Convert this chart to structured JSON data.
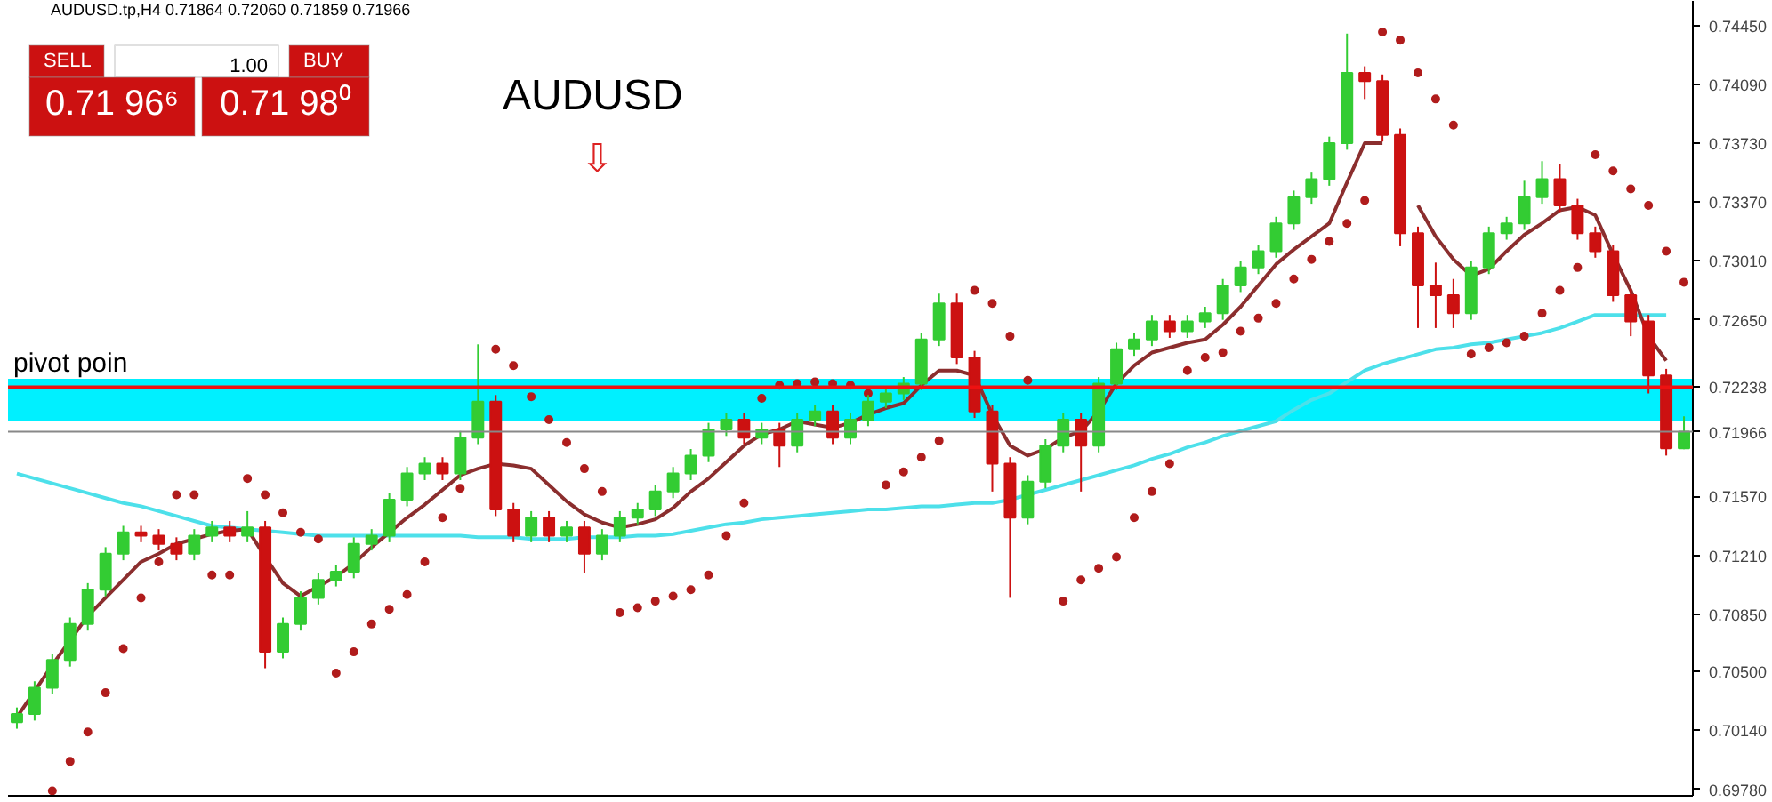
{
  "chart_data": {
    "type": "candlestick",
    "title": "AUDUSD",
    "subtitle": "AUDUSD.tp,H4  0.71864 0.72060 0.71859 0.71966",
    "annotations": [
      "SELL",
      "1.00",
      "BUY",
      "0.71 96⁶",
      "0.71 98⁰",
      "⇩"
    ],
    "categories": [
      null,
      null,
      null,
      null,
      null,
      null,
      null,
      null,
      null,
      null,
      null,
      null,
      null,
      null,
      null,
      null,
      null,
      null,
      null,
      null,
      null,
      null,
      null,
      null,
      null,
      null,
      null,
      null,
      null,
      null,
      null,
      null,
      null,
      null,
      null,
      null,
      null,
      null,
      null,
      null,
      null,
      null,
      null,
      null,
      null,
      null,
      null,
      null,
      null,
      null,
      null,
      null,
      null,
      null,
      null,
      null,
      null,
      null,
      null,
      null,
      null,
      null,
      null,
      null,
      null,
      null,
      null,
      null,
      null,
      null,
      null,
      null,
      null,
      null,
      null,
      null,
      null,
      null,
      null,
      null,
      null,
      null,
      null,
      null,
      null,
      null,
      null,
      null,
      null,
      null,
      null,
      null,
      null,
      null,
      null
    ],
    "ohlc": [
      [
        0.7019,
        0.7028,
        0.7015,
        0.7024
      ],
      [
        0.7024,
        0.7044,
        0.702,
        0.704
      ],
      [
        0.704,
        0.7061,
        0.7036,
        0.7057
      ],
      [
        0.7057,
        0.7083,
        0.7053,
        0.7079
      ],
      [
        0.7079,
        0.7104,
        0.7075,
        0.71
      ],
      [
        0.71,
        0.7126,
        0.7096,
        0.7122
      ],
      [
        0.7122,
        0.7139,
        0.7118,
        0.7135
      ],
      [
        0.7135,
        0.7139,
        0.7129,
        0.7133
      ],
      [
        0.7133,
        0.7137,
        0.7124,
        0.7128
      ],
      [
        0.7128,
        0.7132,
        0.7118,
        0.7122
      ],
      [
        0.7122,
        0.7137,
        0.7118,
        0.7133
      ],
      [
        0.7133,
        0.7142,
        0.7129,
        0.7138
      ],
      [
        0.7138,
        0.7142,
        0.7129,
        0.7133
      ],
      [
        0.7133,
        0.7148,
        0.7129,
        0.7138
      ],
      [
        0.7138,
        0.7142,
        0.7052,
        0.7062
      ],
      [
        0.7062,
        0.7083,
        0.7058,
        0.7079
      ],
      [
        0.7079,
        0.7099,
        0.7075,
        0.7095
      ],
      [
        0.7095,
        0.711,
        0.7091,
        0.7106
      ],
      [
        0.7106,
        0.7115,
        0.7102,
        0.7111
      ],
      [
        0.7111,
        0.7132,
        0.7107,
        0.7128
      ],
      [
        0.7128,
        0.7137,
        0.7124,
        0.7133
      ],
      [
        0.7133,
        0.7159,
        0.7129,
        0.7155
      ],
      [
        0.7155,
        0.7175,
        0.7151,
        0.7171
      ],
      [
        0.7171,
        0.7181,
        0.7167,
        0.7177
      ],
      [
        0.7177,
        0.7181,
        0.7167,
        0.7171
      ],
      [
        0.7171,
        0.7197,
        0.7167,
        0.7193
      ],
      [
        0.7193,
        0.725,
        0.7189,
        0.7215
      ],
      [
        0.7215,
        0.7219,
        0.7145,
        0.7149
      ],
      [
        0.7149,
        0.7153,
        0.7129,
        0.7133
      ],
      [
        0.7133,
        0.7148,
        0.7129,
        0.7144
      ],
      [
        0.7144,
        0.7148,
        0.7129,
        0.7133
      ],
      [
        0.7133,
        0.7142,
        0.7129,
        0.7138
      ],
      [
        0.7138,
        0.7142,
        0.711,
        0.7122
      ],
      [
        0.7122,
        0.7137,
        0.7118,
        0.7133
      ],
      [
        0.7133,
        0.7148,
        0.7129,
        0.7144
      ],
      [
        0.7144,
        0.7153,
        0.714,
        0.7149
      ],
      [
        0.7149,
        0.7164,
        0.7145,
        0.716
      ],
      [
        0.716,
        0.7175,
        0.7156,
        0.7171
      ],
      [
        0.7171,
        0.7186,
        0.7167,
        0.7182
      ],
      [
        0.7182,
        0.7202,
        0.7178,
        0.7198
      ],
      [
        0.7198,
        0.7208,
        0.7194,
        0.7204
      ],
      [
        0.7204,
        0.7208,
        0.7189,
        0.7193
      ],
      [
        0.7193,
        0.7202,
        0.7189,
        0.7198
      ],
      [
        0.7198,
        0.7202,
        0.7175,
        0.7188
      ],
      [
        0.7188,
        0.7208,
        0.7184,
        0.7204
      ],
      [
        0.7204,
        0.7213,
        0.72,
        0.7209
      ],
      [
        0.7209,
        0.7213,
        0.7189,
        0.7193
      ],
      [
        0.7193,
        0.7208,
        0.7189,
        0.7204
      ],
      [
        0.7204,
        0.7219,
        0.72,
        0.7215
      ],
      [
        0.7215,
        0.7224,
        0.7211,
        0.722
      ],
      [
        0.722,
        0.723,
        0.7216,
        0.7226
      ],
      [
        0.7226,
        0.7257,
        0.7222,
        0.7253
      ],
      [
        0.7253,
        0.7281,
        0.7249,
        0.7275
      ],
      [
        0.7275,
        0.7281,
        0.7238,
        0.7242
      ],
      [
        0.7242,
        0.7246,
        0.7205,
        0.7209
      ],
      [
        0.7209,
        0.7213,
        0.716,
        0.7177
      ],
      [
        0.7177,
        0.7181,
        0.7095,
        0.7144
      ],
      [
        0.7144,
        0.717,
        0.714,
        0.7166
      ],
      [
        0.7166,
        0.7192,
        0.7162,
        0.7188
      ],
      [
        0.7188,
        0.7208,
        0.7184,
        0.7204
      ],
      [
        0.7204,
        0.7208,
        0.716,
        0.7188
      ],
      [
        0.7188,
        0.723,
        0.7184,
        0.7226
      ],
      [
        0.7226,
        0.7251,
        0.7222,
        0.7247
      ],
      [
        0.7247,
        0.7257,
        0.7243,
        0.7253
      ],
      [
        0.7253,
        0.7268,
        0.7249,
        0.7264
      ],
      [
        0.7264,
        0.7268,
        0.7254,
        0.7258
      ],
      [
        0.7258,
        0.7268,
        0.7254,
        0.7264
      ],
      [
        0.7264,
        0.7273,
        0.726,
        0.7269
      ],
      [
        0.7269,
        0.729,
        0.7265,
        0.7286
      ],
      [
        0.7286,
        0.7301,
        0.7282,
        0.7297
      ],
      [
        0.7297,
        0.7311,
        0.7293,
        0.7307
      ],
      [
        0.7307,
        0.7328,
        0.7303,
        0.7324
      ],
      [
        0.7324,
        0.7344,
        0.732,
        0.734
      ],
      [
        0.734,
        0.7355,
        0.7336,
        0.7351
      ],
      [
        0.7351,
        0.7377,
        0.7347,
        0.7373
      ],
      [
        0.7373,
        0.744,
        0.7369,
        0.7416
      ],
      [
        0.7416,
        0.742,
        0.74,
        0.7411
      ],
      [
        0.7411,
        0.7415,
        0.7374,
        0.7378
      ],
      [
        0.7378,
        0.7382,
        0.731,
        0.7318
      ],
      [
        0.7318,
        0.7322,
        0.726,
        0.7286
      ],
      [
        0.7286,
        0.73,
        0.726,
        0.728
      ],
      [
        0.728,
        0.729,
        0.726,
        0.7269
      ],
      [
        0.7269,
        0.7301,
        0.7265,
        0.7297
      ],
      [
        0.7297,
        0.7322,
        0.7293,
        0.7318
      ],
      [
        0.7318,
        0.7328,
        0.7314,
        0.7324
      ],
      [
        0.7324,
        0.735,
        0.732,
        0.734
      ],
      [
        0.734,
        0.7362,
        0.7336,
        0.7351
      ],
      [
        0.7351,
        0.736,
        0.7331,
        0.7335
      ],
      [
        0.7335,
        0.7339,
        0.7314,
        0.7318
      ],
      [
        0.7318,
        0.7322,
        0.7303,
        0.7307
      ],
      [
        0.7307,
        0.7311,
        0.7276,
        0.728
      ],
      [
        0.728,
        0.7284,
        0.7255,
        0.7264
      ],
      [
        0.7264,
        0.7268,
        0.722,
        0.7231
      ],
      [
        0.7231,
        0.7235,
        0.7182,
        0.71864
      ],
      [
        0.71864,
        0.7206,
        0.71859,
        0.71966
      ]
    ],
    "colors": [
      "#33cc33",
      "#33cc33",
      "#33cc33",
      "#33cc33",
      "#33cc33",
      "#33cc33",
      "#33cc33",
      "#cc1111",
      "#cc1111",
      "#cc1111",
      "#33cc33",
      "#33cc33",
      "#cc1111",
      "#33cc33",
      "#cc1111",
      "#33cc33",
      "#33cc33",
      "#33cc33",
      "#33cc33",
      "#33cc33",
      "#33cc33",
      "#33cc33",
      "#33cc33",
      "#33cc33",
      "#cc1111",
      "#33cc33",
      "#33cc33",
      "#cc1111",
      "#cc1111",
      "#33cc33",
      "#cc1111",
      "#33cc33",
      "#cc1111",
      "#33cc33",
      "#33cc33",
      "#33cc33",
      "#33cc33",
      "#33cc33",
      "#33cc33",
      "#33cc33",
      "#33cc33",
      "#cc1111",
      "#33cc33",
      "#cc1111",
      "#33cc33",
      "#33cc33",
      "#cc1111",
      "#33cc33",
      "#33cc33",
      "#33cc33",
      "#33cc33",
      "#33cc33",
      "#33cc33",
      "#cc1111",
      "#cc1111",
      "#cc1111",
      "#cc1111",
      "#33cc33",
      "#33cc33",
      "#33cc33",
      "#cc1111",
      "#33cc33",
      "#33cc33",
      "#33cc33",
      "#33cc33",
      "#cc1111",
      "#33cc33",
      "#33cc33",
      "#33cc33",
      "#33cc33",
      "#33cc33",
      "#33cc33",
      "#33cc33",
      "#33cc33",
      "#33cc33",
      "#33cc33",
      "#cc1111",
      "#cc1111",
      "#cc1111",
      "#cc1111",
      "#cc1111",
      "#cc1111",
      "#33cc33",
      "#33cc33",
      "#33cc33",
      "#33cc33",
      "#33cc33",
      "#cc1111",
      "#cc1111",
      "#cc1111",
      "#cc1111",
      "#cc1111",
      "#cc1111",
      "#cc1111",
      "#33cc33"
    ],
    "series": [
      {
        "type": "line",
        "color": "#4de0ea",
        "values": [
          0.7171,
          0.7168,
          0.7165,
          0.7162,
          0.7159,
          0.7156,
          0.7153,
          0.7151,
          0.7148,
          0.7145,
          0.7142,
          0.7139,
          0.7138,
          0.7137,
          0.7136,
          0.7135,
          0.7134,
          0.7133,
          0.7133,
          0.7133,
          0.7133,
          0.7133,
          0.7133,
          0.7133,
          0.7133,
          0.7133,
          0.7132,
          0.7132,
          0.7132,
          0.7131,
          0.7131,
          0.7131,
          0.7132,
          0.7132,
          0.7132,
          0.7133,
          0.7133,
          0.7134,
          0.7136,
          0.7138,
          0.714,
          0.7141,
          0.7143,
          0.7144,
          0.7145,
          0.7146,
          0.7147,
          0.7148,
          0.7149,
          0.7149,
          0.715,
          0.7151,
          0.7151,
          0.7152,
          0.7153,
          0.7153,
          0.7155,
          0.7158,
          0.7161,
          0.7164,
          0.7167,
          0.717,
          0.7173,
          0.7176,
          0.718,
          0.7183,
          0.7187,
          0.719,
          0.7194,
          0.7197,
          0.72,
          0.7203,
          0.721,
          0.7216,
          0.722,
          0.7227,
          0.7234,
          0.7238,
          0.7241,
          0.7244,
          0.7247,
          0.7248,
          0.725,
          0.7251,
          0.7253,
          0.7255,
          0.7257,
          0.726,
          0.7264,
          0.7268,
          0.7268,
          0.7268,
          0.7268,
          0.7268,
          null
        ]
      },
      {
        "type": "line",
        "color": "#8b2e2e",
        "values": [
          0.7022,
          0.7038,
          0.7054,
          0.7069,
          0.7084,
          0.7095,
          0.7106,
          0.7117,
          0.7122,
          0.7128,
          0.7131,
          0.7134,
          0.7136,
          0.7137,
          0.712,
          0.7104,
          0.7096,
          0.7102,
          0.7108,
          0.7116,
          0.7126,
          0.7135,
          0.7144,
          0.7152,
          0.7161,
          0.717,
          0.7174,
          0.7177,
          0.7176,
          0.7174,
          0.7164,
          0.7154,
          0.7146,
          0.7141,
          0.7138,
          0.714,
          0.7143,
          0.715,
          0.716,
          0.7168,
          0.7178,
          0.7188,
          0.7195,
          0.7198,
          0.7203,
          0.7201,
          0.7199,
          0.7202,
          0.7207,
          0.7211,
          0.7214,
          0.7225,
          0.7234,
          0.7234,
          0.7231,
          0.7207,
          0.7188,
          0.7182,
          0.7186,
          0.7193,
          0.7197,
          0.7209,
          0.7226,
          0.7237,
          0.7245,
          0.7248,
          0.7251,
          0.7253,
          0.7262,
          0.7273,
          0.7286,
          0.7299,
          0.7308,
          0.7316,
          0.7324,
          0.7349,
          0.7373,
          0.7373,
          null,
          0.7335,
          0.7316,
          0.7302,
          0.7292,
          0.7296,
          0.7307,
          0.7317,
          0.7324,
          0.7332,
          0.7334,
          0.7329,
          0.7305,
          0.7283,
          0.7255,
          0.724,
          null
        ]
      },
      {
        "type": "scatter",
        "color": "#b01c1c",
        "marker": "circle",
        "values": [
          null,
          null,
          0.6977,
          0.6995,
          0.7013,
          0.7037,
          0.7064,
          0.7095,
          0.7117,
          0.7158,
          0.7158,
          0.7109,
          0.7109,
          0.7168,
          0.7158,
          0.7147,
          0.7135,
          0.7131,
          0.7049,
          0.7062,
          0.7079,
          0.7088,
          0.7097,
          0.7117,
          0.7144,
          0.7162,
          null,
          0.7247,
          0.7237,
          0.7218,
          0.7204,
          0.719,
          0.7174,
          0.716,
          0.7086,
          0.7089,
          0.7093,
          0.7096,
          0.71,
          0.7109,
          0.7133,
          0.7153,
          0.7217,
          0.7225,
          0.7226,
          0.7227,
          0.7226,
          0.7225,
          0.722,
          0.7164,
          0.7172,
          0.7181,
          0.7191,
          null,
          0.7283,
          0.7275,
          0.7255,
          0.7228,
          null,
          0.7093,
          0.7106,
          0.7113,
          0.712,
          0.7144,
          0.716,
          0.7177,
          0.7234,
          0.7242,
          0.7245,
          0.7258,
          0.7266,
          0.7275,
          0.729,
          0.7302,
          0.7313,
          0.7324,
          0.7338,
          0.7441,
          0.7436,
          0.7416,
          0.74,
          0.7384,
          0.7244,
          0.7248,
          0.7251,
          0.7255,
          0.7269,
          0.7283,
          0.7297,
          0.7366,
          0.7356,
          0.7345,
          0.7335,
          0.7307,
          0.7288
        ]
      }
    ],
    "ylim": [
      0.6974,
      0.746
    ],
    "yticks": [
      {
        "value": 0.6978,
        "label": "0.69780"
      },
      {
        "value": 0.7014,
        "label": "0.70140"
      },
      {
        "value": 0.705,
        "label": "0.70500"
      },
      {
        "value": 0.7085,
        "label": "0.70850"
      },
      {
        "value": 0.7121,
        "label": "0.71210"
      },
      {
        "value": 0.7157,
        "label": "0.71570"
      },
      {
        "value": 0.7265,
        "label": "0.72650"
      },
      {
        "value": 0.7301,
        "label": "0.73010"
      },
      {
        "value": 0.7337,
        "label": "0.73370"
      },
      {
        "value": 0.7373,
        "label": "0.73730"
      },
      {
        "value": 0.7409,
        "label": "0.74090"
      },
      {
        "value": 0.7445,
        "label": "0.74450"
      }
    ],
    "ref_lines": [
      {
        "axis": "y",
        "value": 0.72238,
        "label": "0.72238",
        "color": "#ee1111"
      },
      {
        "axis": "y",
        "value": 0.71966,
        "label": "0.71966",
        "color": "#888888"
      }
    ],
    "bands": [
      {
        "axis": "y",
        "from": 0.7203,
        "to": 0.7229,
        "label": "pivot poin",
        "color": "#00f0ff"
      }
    ],
    "tick_labels": "y",
    "grid": false
  }
}
